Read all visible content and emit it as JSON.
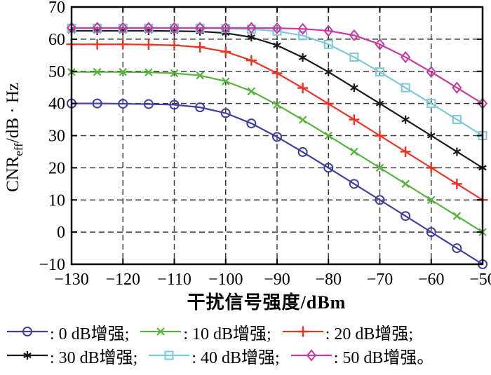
{
  "chart_data": {
    "type": "line",
    "title": "",
    "xlabel": "干扰信号强度/dBm",
    "ylabel": {
      "pre": "CNR",
      "sub": "eff",
      "post": "/dB · Hz"
    },
    "xlim": [
      -130,
      -50
    ],
    "ylim": [
      -10,
      70
    ],
    "grid": true,
    "grid_style": "dashed",
    "legend_position": "below",
    "legend_separator": ": ",
    "xtick_values": [
      -130,
      -120,
      -110,
      -100,
      -90,
      -80,
      -70,
      -60,
      -50
    ],
    "xtick_labels": [
      "−130",
      "−120",
      "−110",
      "−100",
      "−90",
      "−80",
      "−70",
      "−60",
      "−50"
    ],
    "ytick_values": [
      -10,
      0,
      10,
      20,
      30,
      40,
      50,
      60,
      70
    ],
    "ytick_labels": [
      "−10",
      "0",
      "10",
      "20",
      "30",
      "40",
      "50",
      "60",
      "70"
    ],
    "x": [
      -130,
      -125,
      -120,
      -115,
      -110,
      -105,
      -100,
      -95,
      -90,
      -85,
      -80,
      -75,
      -70,
      -65,
      -60,
      -55,
      -50
    ],
    "series": [
      {
        "name": "0 dB增强",
        "suffix": ";",
        "marker": "circle",
        "color": "#3f3fa0",
        "values": [
          40,
          40,
          39.9,
          39.8,
          39.6,
          38.8,
          37,
          33.8,
          29.6,
          24.9,
          20,
          15,
          10,
          5,
          0,
          -5,
          -10
        ]
      },
      {
        "name": "10 dB增强",
        "suffix": ";",
        "marker": "x",
        "color": "#55b43c",
        "values": [
          49.8,
          49.8,
          49.8,
          49.7,
          49.4,
          48.7,
          46.9,
          43.8,
          39.6,
          34.9,
          30,
          25,
          20,
          15,
          10,
          5,
          0
        ]
      },
      {
        "name": "20 dB增强",
        "suffix": ";",
        "marker": "plus",
        "color": "#e93323",
        "values": [
          58.4,
          58.4,
          58.4,
          58.3,
          58.1,
          57.5,
          56.1,
          53.4,
          49.4,
          44.8,
          39.9,
          35,
          30,
          25,
          20,
          15,
          10
        ]
      },
      {
        "name": "30 dB增强",
        "suffix": ";",
        "marker": "asterisk",
        "color": "#1a1a1a",
        "values": [
          62.6,
          62.6,
          62.6,
          62.6,
          62.5,
          62.4,
          61.9,
          60.6,
          58.1,
          54.3,
          49.8,
          44.9,
          40,
          35,
          30,
          25,
          20
        ]
      },
      {
        "name": "40 dB增强",
        "suffix": ";",
        "marker": "square",
        "color": "#7bc8d8",
        "values": [
          63.4,
          63.4,
          63.4,
          63.4,
          63.4,
          63.4,
          63.3,
          63.1,
          62.5,
          61.1,
          58.4,
          54.4,
          49.8,
          44.9,
          40,
          35,
          30
        ]
      },
      {
        "name": "50 dB增强",
        "suffix": "。",
        "marker": "diamond",
        "color": "#c53aa0",
        "values": [
          63.5,
          63.5,
          63.5,
          63.5,
          63.5,
          63.5,
          63.5,
          63.5,
          63.4,
          63.2,
          62.6,
          61.2,
          58.4,
          54.4,
          49.8,
          44.9,
          40
        ]
      }
    ]
  }
}
